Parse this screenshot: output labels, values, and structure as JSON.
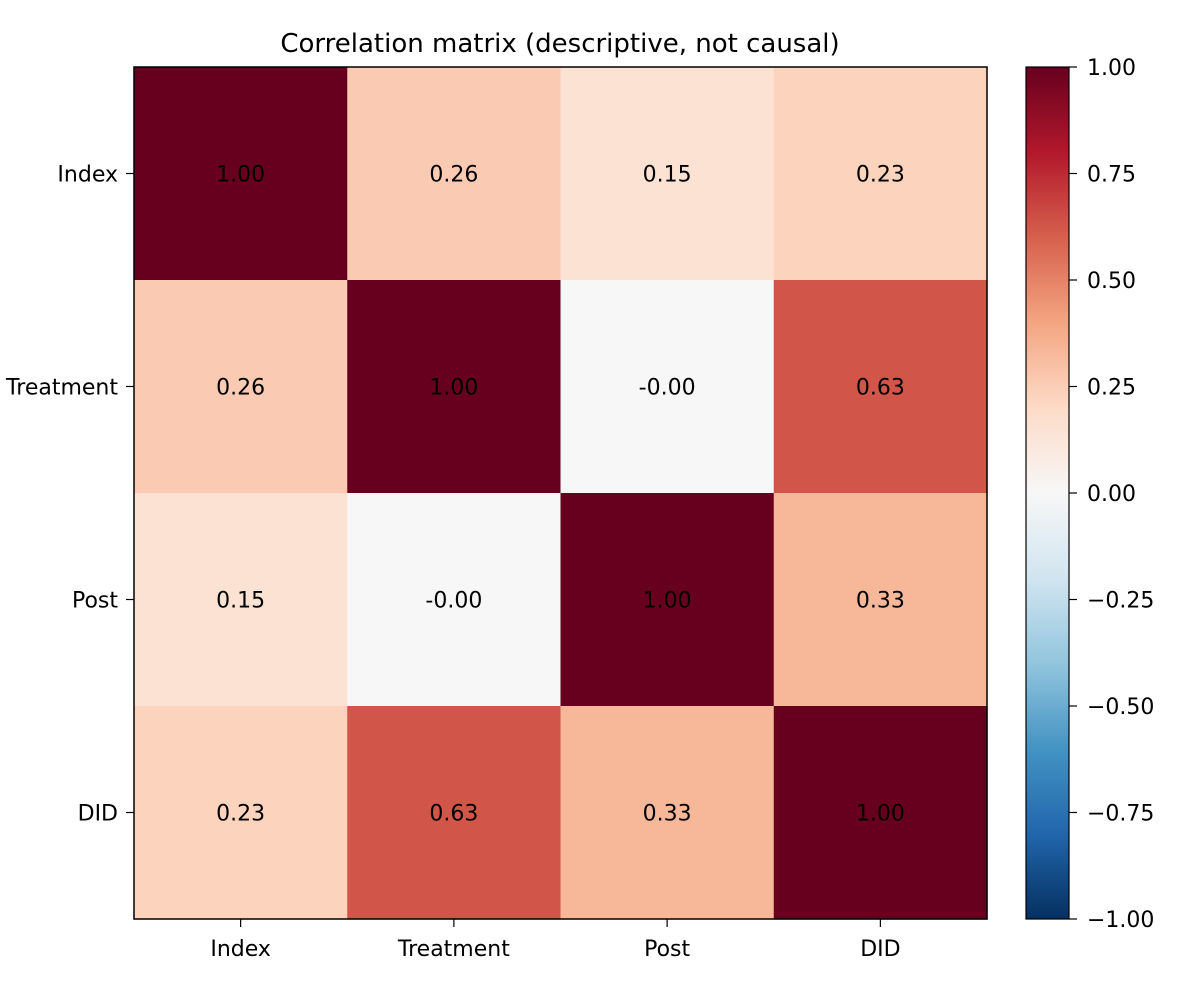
{
  "chart_data": {
    "type": "heatmap",
    "title": "Correlation matrix (descriptive, not causal)",
    "x_labels": [
      "Index",
      "Treatment",
      "Post",
      "DID"
    ],
    "y_labels": [
      "Index",
      "Treatment",
      "Post",
      "DID"
    ],
    "values": [
      [
        1.0,
        0.26,
        0.15,
        0.23
      ],
      [
        0.26,
        1.0,
        -0.0,
        0.63
      ],
      [
        0.15,
        -0.0,
        1.0,
        0.33
      ],
      [
        0.23,
        0.63,
        0.33,
        1.0
      ]
    ],
    "cell_labels": [
      [
        "1.00",
        "0.26",
        "0.15",
        "0.23"
      ],
      [
        "0.26",
        "1.00",
        "-0.00",
        "0.63"
      ],
      [
        "0.15",
        "-0.00",
        "1.00",
        "0.33"
      ],
      [
        "0.23",
        "0.63",
        "0.33",
        "1.00"
      ]
    ],
    "colorbar": {
      "min": -1.0,
      "max": 1.0,
      "ticks": [
        1.0,
        0.75,
        0.5,
        0.25,
        0.0,
        -0.25,
        -0.5,
        -0.75,
        -1.0
      ],
      "tick_labels": [
        "1.00",
        "0.75",
        "0.50",
        "0.25",
        "0.00",
        "−0.25",
        "−0.50",
        "−0.75",
        "−1.00"
      ],
      "colormap": "RdBu_r",
      "colormap_stops": [
        "#053061",
        "#2166ac",
        "#4393c3",
        "#92c5de",
        "#d1e5f0",
        "#f7f7f7",
        "#fddbc7",
        "#f4a582",
        "#d6604d",
        "#b2182b",
        "#67001f"
      ]
    }
  }
}
